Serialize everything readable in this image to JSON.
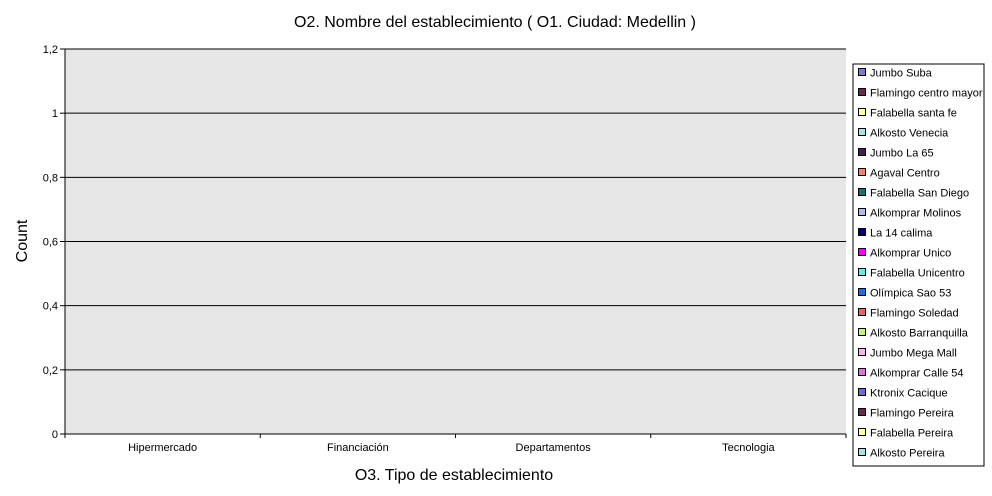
{
  "chart_data": {
    "type": "bar",
    "title": "O2. Nombre del establecimiento ( O1. Ciudad: Medellin )",
    "xlabel": "O3. Tipo de establecimiento",
    "ylabel": "Count",
    "categories": [
      "Hipermercado",
      "Financiación",
      "Departamentos",
      "Tecnologia"
    ],
    "ylim": [
      0,
      1.2
    ],
    "yticks": [
      "0",
      "0,2",
      "0,4",
      "0,6",
      "0,8",
      "1",
      "1,2"
    ],
    "grid": true,
    "legend_position": "right",
    "plot_background": "#e6e6e6",
    "series": [
      {
        "name": "Jumbo Suba",
        "color": "#7b7bd6",
        "values": [
          0,
          0,
          0,
          0
        ]
      },
      {
        "name": "Flamingo centro mayor",
        "color": "#6e2a4e",
        "values": [
          0,
          0,
          0,
          0
        ]
      },
      {
        "name": "Falabella santa fe",
        "color": "#ffffa8",
        "values": [
          0,
          0,
          0,
          0
        ]
      },
      {
        "name": "Alkosto Venecia",
        "color": "#a8e0e8",
        "values": [
          0,
          0,
          0,
          0
        ]
      },
      {
        "name": "Jumbo La 65",
        "color": "#4a1a62",
        "values": [
          0,
          0,
          0,
          0
        ]
      },
      {
        "name": "Agaval Centro",
        "color": "#f08070",
        "values": [
          0,
          0,
          0,
          0
        ]
      },
      {
        "name": "Falabella San Diego",
        "color": "#1a7070",
        "values": [
          0,
          0,
          0,
          0
        ]
      },
      {
        "name": "Alkomprar Molinos",
        "color": "#b0b8f0",
        "values": [
          0,
          0,
          0,
          0
        ]
      },
      {
        "name": "La 14 calima",
        "color": "#000080",
        "values": [
          0,
          0,
          0,
          0
        ]
      },
      {
        "name": "Alkomprar Unico",
        "color": "#ff00ff",
        "values": [
          0,
          0,
          0,
          0
        ]
      },
      {
        "name": "Falabella Unicentro",
        "color": "#66e8f0",
        "values": [
          0,
          0,
          0,
          0
        ]
      },
      {
        "name": "Olímpica Sao 53",
        "color": "#1a70e0",
        "values": [
          0,
          0,
          0,
          0
        ]
      },
      {
        "name": "Flamingo Soledad",
        "color": "#f06060",
        "values": [
          0,
          0,
          0,
          0
        ]
      },
      {
        "name": "Alkosto Barranquilla",
        "color": "#c8f080",
        "values": [
          0,
          0,
          0,
          0
        ]
      },
      {
        "name": "Jumbo Mega Mall",
        "color": "#f8b0f0",
        "values": [
          0,
          0,
          0,
          0
        ]
      },
      {
        "name": "Alkomprar Calle 54",
        "color": "#e070e0",
        "values": [
          0,
          0,
          0,
          0
        ]
      },
      {
        "name": "Ktronix Cacique",
        "color": "#6a6ae0",
        "values": [
          0,
          0,
          0,
          0
        ]
      },
      {
        "name": "Flamingo Pereira",
        "color": "#6e2a4e",
        "values": [
          0,
          0,
          0,
          0
        ]
      },
      {
        "name": "Falabella Pereira",
        "color": "#ffffa8",
        "values": [
          0,
          0,
          0,
          0
        ]
      },
      {
        "name": "Alkosto Pereira",
        "color": "#a8e0e8",
        "values": [
          0,
          0,
          0,
          0
        ]
      }
    ]
  }
}
